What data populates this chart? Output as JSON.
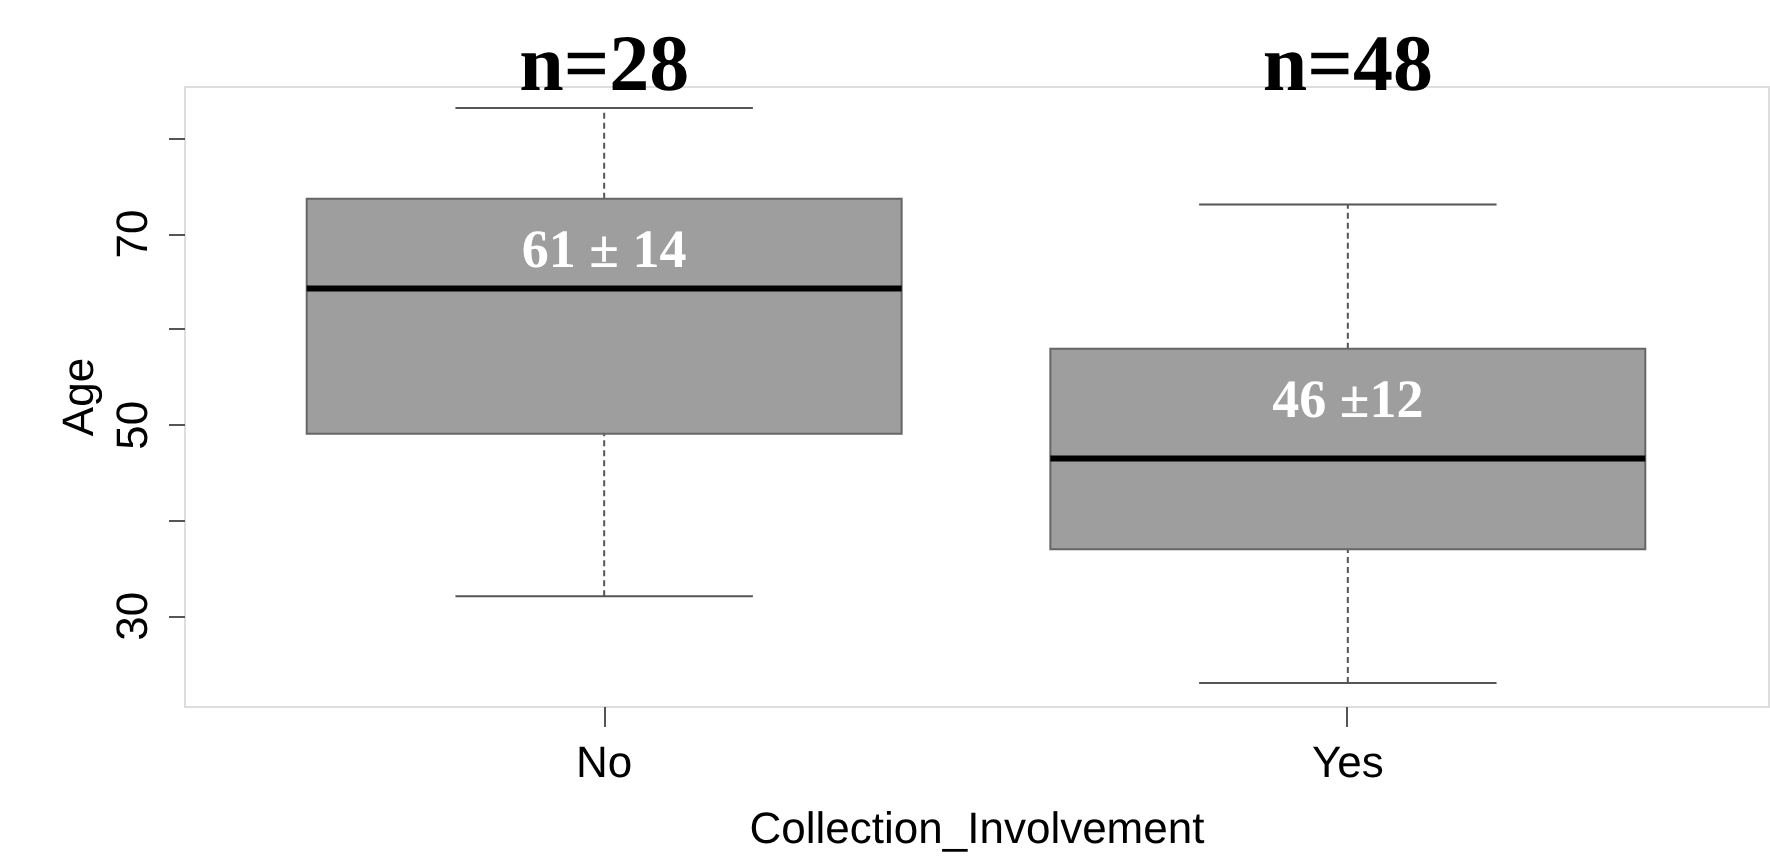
{
  "chart_data": {
    "type": "box",
    "xlabel": "Collection_Involvement",
    "ylabel": "Age",
    "categories": [
      "No",
      "Yes"
    ],
    "boxes": [
      {
        "low": 32.0,
        "q1": 49.0,
        "median": 64.2,
        "q3": 73.6,
        "high": 83.1
      },
      {
        "low": 22.9,
        "q1": 36.9,
        "median": 46.4,
        "q3": 57.9,
        "high": 73.0
      }
    ],
    "colors": [
      "#9e9e9e",
      "#9e9e9e"
    ],
    "ylim": [
      20.5,
      85.4
    ],
    "yticks": [
      30,
      {
        "value": 40,
        "label": null
      },
      50,
      {
        "value": 60,
        "label": null
      },
      70,
      {
        "value": 80,
        "label": null
      }
    ],
    "annotations": [
      "n=28",
      "n=48",
      "61 ± 14",
      "46 ±12"
    ]
  }
}
